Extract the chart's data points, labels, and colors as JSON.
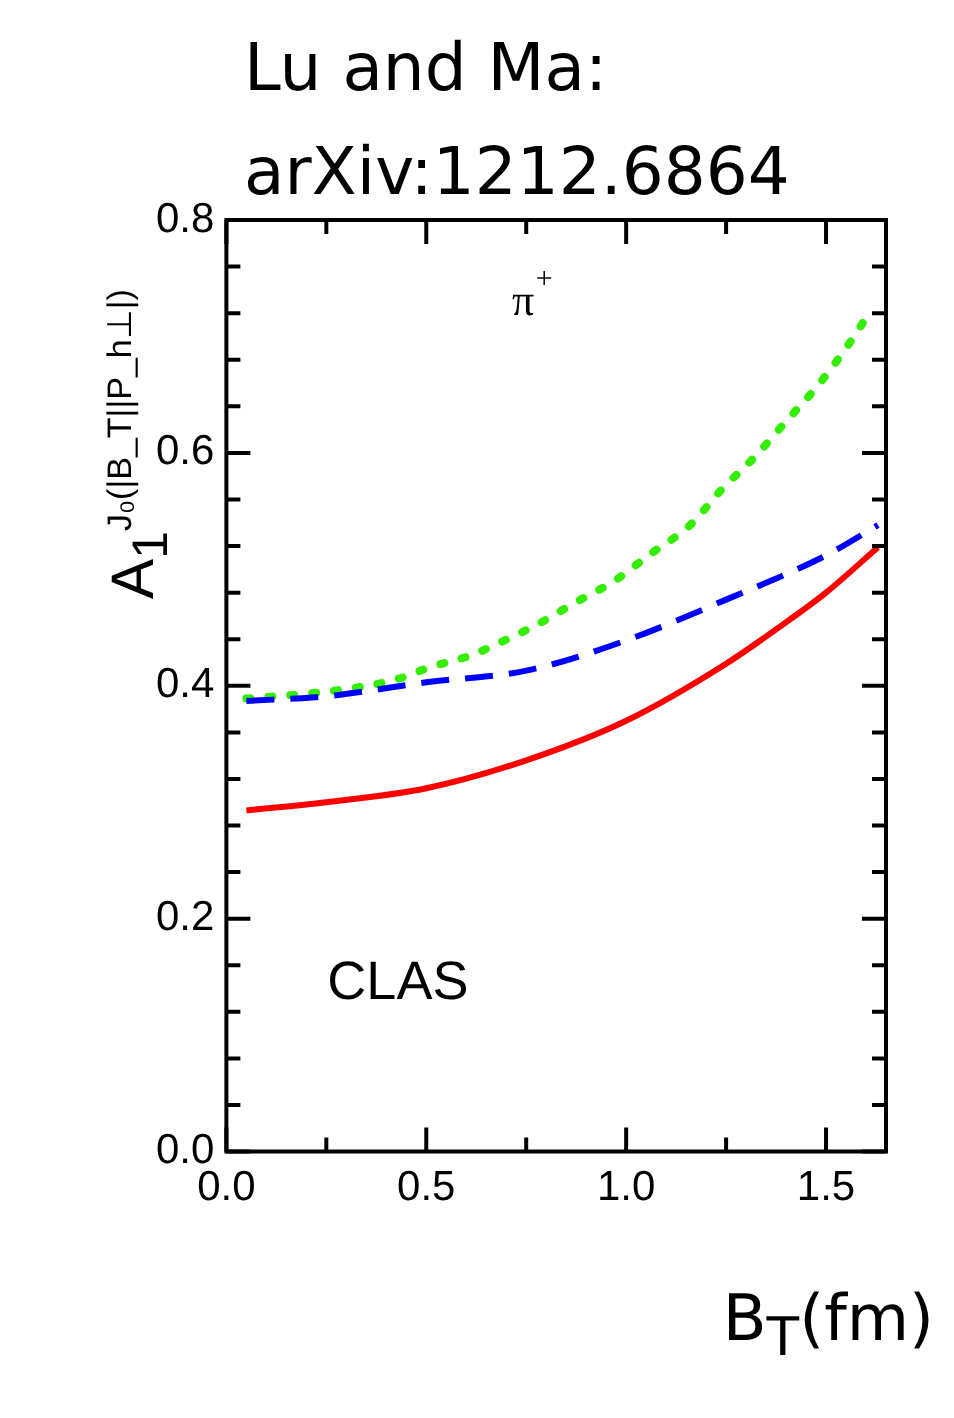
{
  "chart_data": {
    "type": "line",
    "title": "Lu and Ma: arXiv:1212.6864",
    "xlabel": "B$_{T}$(fm)",
    "ylabel": "A$_{1}$$^{J₀(|B_T||P_h⊥|)}$",
    "annotations": [
      "π$^{+}$",
      "CLAS"
    ],
    "xlim": [
      0,
      1.65
    ],
    "ylim": [
      0,
      0.8
    ],
    "xticks": [
      {
        "value": 0,
        "label": "0.0"
      },
      {
        "value": 0.25,
        "label": null
      },
      {
        "value": 0.5,
        "label": "0.5"
      },
      {
        "value": 0.75,
        "label": null
      },
      {
        "value": 1,
        "label": "1.0"
      },
      {
        "value": 1.25,
        "label": null
      },
      {
        "value": 1.5,
        "label": "1.5"
      }
    ],
    "yticks": [
      {
        "value": 0,
        "label": "0.0"
      },
      {
        "value": 0.04,
        "label": null
      },
      {
        "value": 0.08,
        "label": null
      },
      {
        "value": 0.12,
        "label": null
      },
      {
        "value": 0.16,
        "label": null
      },
      0.2,
      {
        "value": 0.24,
        "label": null
      },
      {
        "value": 0.28,
        "label": null
      },
      {
        "value": 0.32,
        "label": null
      },
      {
        "value": 0.36,
        "label": null
      },
      0.4,
      {
        "value": 0.44,
        "label": null
      },
      {
        "value": 0.48,
        "label": null
      },
      {
        "value": 0.52,
        "label": null
      },
      {
        "value": 0.56,
        "label": null
      },
      0.6,
      {
        "value": 0.64,
        "label": null
      },
      {
        "value": 0.68,
        "label": null
      },
      {
        "value": 0.72,
        "label": null
      },
      {
        "value": 0.76,
        "label": null
      },
      0.8
    ],
    "grid": false,
    "legend": false,
    "marker": "none",
    "series": [
      {
        "color": "#ff0000",
        "line_style": "solid",
        "x": [
          0.05,
          0.25,
          0.5,
          0.75,
          1.0,
          1.25,
          1.41,
          1.5,
          1.63
        ],
        "values": [
          0.293,
          0.3,
          0.312,
          0.336,
          0.37,
          0.419,
          0.457,
          0.48,
          0.519
        ]
      },
      {
        "color": "#0000ff",
        "line_style": "dashed",
        "x": [
          0.05,
          0.25,
          0.5,
          0.75,
          1.0,
          1.25,
          1.5,
          1.63
        ],
        "values": [
          0.387,
          0.391,
          0.403,
          0.413,
          0.439,
          0.474,
          0.512,
          0.538
        ]
      },
      {
        "color": "#33ee00",
        "line_style": "dotted",
        "x": [
          0.05,
          0.25,
          0.42,
          0.51,
          0.61,
          0.69,
          0.79,
          0.87,
          0.97,
          1.06,
          1.16,
          1.24,
          1.32,
          1.4,
          1.48,
          1.55,
          1.61
        ],
        "values": [
          0.389,
          0.395,
          0.405,
          0.416,
          0.426,
          0.438,
          0.455,
          0.471,
          0.49,
          0.513,
          0.538,
          0.569,
          0.596,
          0.627,
          0.658,
          0.69,
          0.721
        ]
      }
    ]
  }
}
